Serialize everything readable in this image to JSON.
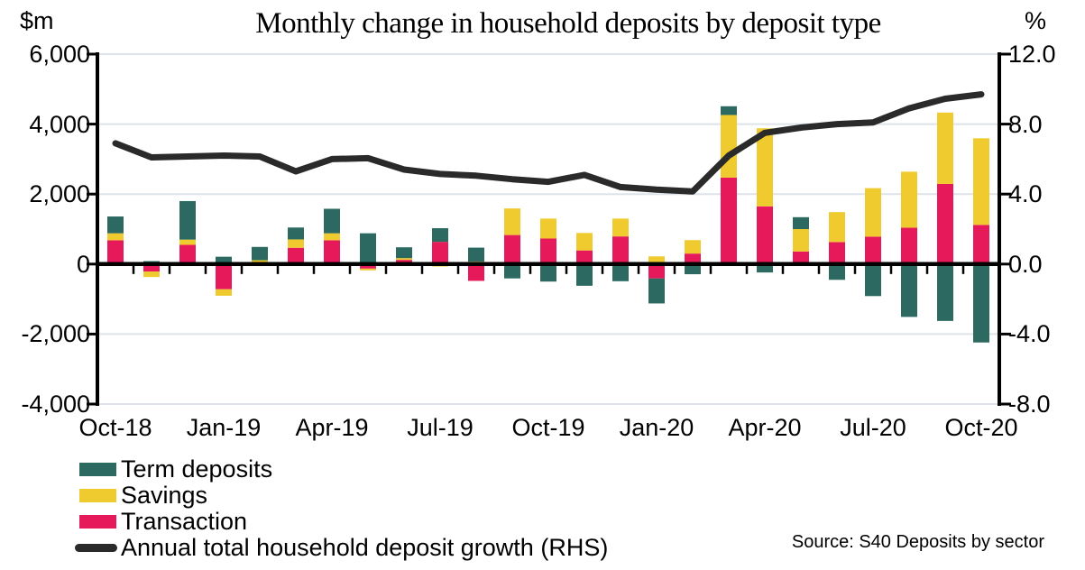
{
  "source": "Source: S40 Deposits by sector",
  "colors": {
    "term_deposits": "#2C6A61",
    "savings": "#EFCB2F",
    "transaction": "#E6195A",
    "growth_line": "#2A2A2A",
    "gridline": "#DEE3EA",
    "axis": "#000000"
  },
  "chart_data": {
    "type": "bar",
    "subtype": "stacked-bars-with-line",
    "title": "Monthly change in household deposits by deposit type",
    "categories": [
      "Oct-18",
      "Nov-18",
      "Dec-18",
      "Jan-19",
      "Feb-19",
      "Mar-19",
      "Apr-19",
      "May-19",
      "Jun-19",
      "Jul-19",
      "Aug-19",
      "Sep-19",
      "Oct-19",
      "Nov-19",
      "Dec-19",
      "Jan-20",
      "Feb-20",
      "Mar-20",
      "Apr-20",
      "May-20",
      "Jun-20",
      "Jul-20",
      "Aug-20",
      "Sep-20",
      "Oct-20"
    ],
    "x_tick_labels": [
      "Oct-18",
      "Jan-19",
      "Apr-19",
      "Jul-19",
      "Oct-19",
      "Jan-20",
      "Apr-20",
      "Jul-20",
      "Oct-20"
    ],
    "x_tick_every": 3,
    "series": [
      {
        "name": "Term deposits",
        "kind": "bar",
        "axis": "left",
        "color": "#2C6A61",
        "values": [
          480,
          85,
          1100,
          210,
          380,
          340,
          700,
          880,
          310,
          390,
          400,
          -410,
          -500,
          -620,
          -490,
          -715,
          -290,
          250,
          -240,
          340,
          -450,
          -915,
          -1510,
          -1625,
          -2240
        ]
      },
      {
        "name": "Savings",
        "kind": "bar",
        "axis": "left",
        "color": "#EFCB2F",
        "values": [
          200,
          -155,
          150,
          -185,
          90,
          240,
          200,
          -50,
          50,
          -70,
          70,
          760,
          570,
          500,
          510,
          220,
          385,
          1790,
          2230,
          640,
          855,
          1385,
          1600,
          2040,
          2475
        ]
      },
      {
        "name": "Transaction",
        "kind": "bar",
        "axis": "left",
        "color": "#E6195A",
        "values": [
          680,
          -215,
          550,
          -720,
          20,
          465,
          680,
          -130,
          120,
          635,
          -480,
          830,
          730,
          390,
          790,
          -410,
          300,
          2470,
          1650,
          360,
          630,
          785,
          1040,
          2290,
          1120
        ]
      },
      {
        "name": "Annual total household deposit growth (RHS)",
        "kind": "line",
        "axis": "right",
        "color": "#2A2A2A",
        "values": [
          6.9,
          6.1,
          6.15,
          6.2,
          6.15,
          5.3,
          6.0,
          6.05,
          5.4,
          5.15,
          5.05,
          4.85,
          4.7,
          5.1,
          4.4,
          4.25,
          4.15,
          6.2,
          7.5,
          7.8,
          8.0,
          8.1,
          8.9,
          9.45,
          9.7
        ]
      }
    ],
    "stack_order_bottom_to_top": [
      "Transaction",
      "Savings",
      "Term deposits"
    ],
    "left_axis": {
      "unit": "$m",
      "min": -4000,
      "max": 6000,
      "tick_values": [
        6000,
        4000,
        2000,
        0,
        -2000,
        -4000
      ],
      "tick_labels": [
        "6,000",
        "4,000",
        "2,000",
        "0",
        "-2,000",
        "-4,000"
      ]
    },
    "right_axis": {
      "unit": "%",
      "min": -8,
      "max": 12,
      "tick_values": [
        12,
        8,
        4,
        0,
        -4,
        -8
      ],
      "tick_labels": [
        "12.0",
        "8.0",
        "4.0",
        "0.0",
        "-4.0",
        "-8.0"
      ]
    },
    "grid": true,
    "legend_position": "bottom-left"
  }
}
